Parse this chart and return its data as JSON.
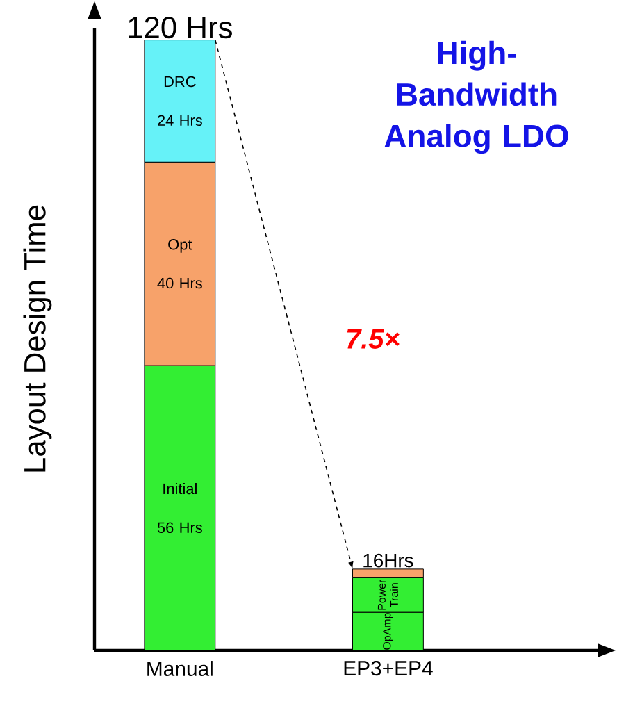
{
  "chart_data": {
    "type": "bar",
    "title": "High-Bandwidth Analog LDO",
    "ylabel": "Layout Design Time",
    "categories": [
      "Manual",
      "EP3+EP4"
    ],
    "stacked": true,
    "tick_labels": "x",
    "totals": [
      "120 Hrs",
      "16Hrs"
    ],
    "annotations": [
      "7.5×"
    ],
    "series": [
      {
        "name": "Initial",
        "color": "#33ee33",
        "values": [
          56,
          null
        ],
        "value_labels": [
          "56 Hrs",
          null
        ]
      },
      {
        "name": "Opt",
        "color": "#f7a26a",
        "values": [
          40,
          null
        ],
        "value_labels": [
          "40 Hrs",
          null
        ]
      },
      {
        "name": "DRC",
        "color": "#66f2f8",
        "values": [
          24,
          null
        ],
        "value_labels": [
          "24 Hrs",
          null
        ]
      },
      {
        "name": "OpAmp",
        "color": "#33ee33",
        "values": [
          null,
          7.5
        ]
      },
      {
        "name": "Power Train",
        "color": "#33ee33",
        "values": [
          null,
          6.8
        ]
      },
      {
        "color": "#f7a26a",
        "values": [
          null,
          1.7
        ]
      }
    ]
  }
}
